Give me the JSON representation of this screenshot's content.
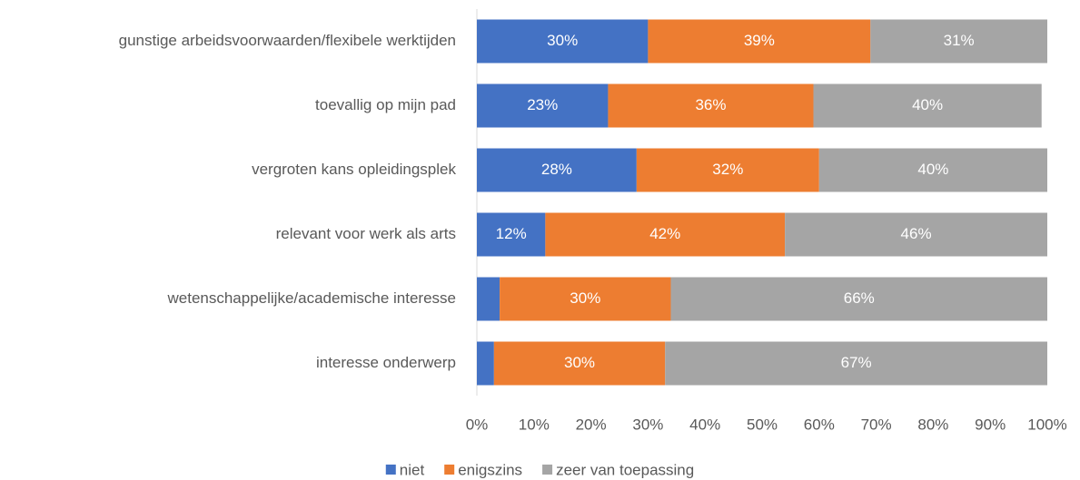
{
  "chart_data": {
    "type": "stacked-bar-horizontal",
    "categories": [
      "gunstige arbeidsvoorwaarden/flexibele werktijden",
      "toevallig op mijn pad",
      "vergroten kans opleidingsplek",
      "relevant voor werk als arts",
      "wetenschappelijke/academische interesse",
      "interesse onderwerp"
    ],
    "series": [
      {
        "name": "niet",
        "color": "#4472c4",
        "values": [
          30,
          23,
          28,
          12,
          4,
          3
        ],
        "value_labels": [
          "30%",
          "23%",
          "28%",
          "12%",
          null,
          null
        ]
      },
      {
        "name": "enigszins",
        "color": "#ed7d31",
        "values": [
          39,
          36,
          32,
          42,
          30,
          30
        ],
        "value_labels": [
          "39%",
          "36%",
          "32%",
          "42%",
          "30%",
          "30%"
        ]
      },
      {
        "name": "zeer van toepassing",
        "color": "#a5a5a5",
        "values": [
          31,
          40,
          40,
          46,
          66,
          67
        ],
        "value_labels": [
          "31%",
          "40%",
          "40%",
          "46%",
          "66%",
          "67%"
        ]
      }
    ],
    "xlim": [
      0,
      100
    ],
    "xticks": [
      {
        "value": 0,
        "label": "0%"
      },
      {
        "value": 10,
        "label": "10%"
      },
      {
        "value": 20,
        "label": "20%"
      },
      {
        "value": 30,
        "label": "30%"
      },
      {
        "value": 40,
        "label": "40%"
      },
      {
        "value": 50,
        "label": "50%"
      },
      {
        "value": 60,
        "label": "60%"
      },
      {
        "value": 70,
        "label": "70%"
      },
      {
        "value": 80,
        "label": "80%"
      },
      {
        "value": 90,
        "label": "90%"
      },
      {
        "value": 100,
        "label": "100%"
      }
    ],
    "legend": "bottom"
  }
}
